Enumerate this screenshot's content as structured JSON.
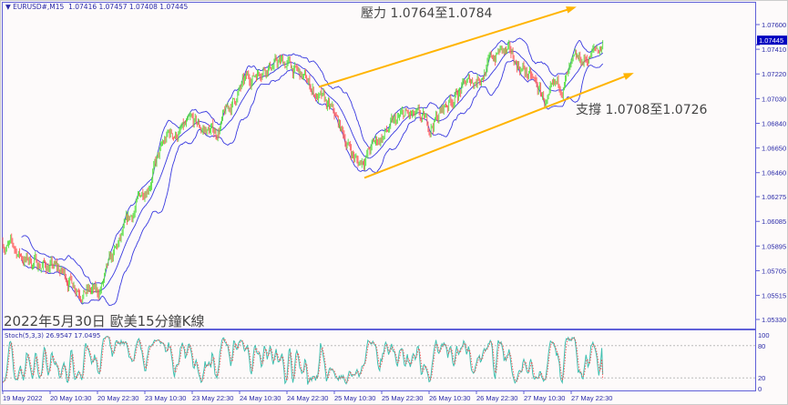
{
  "header": {
    "symbol": "EURUSD#,M15",
    "ohlc": "1.07416 1.07457 1.07408 1.07445"
  },
  "annotations": {
    "resistance": "壓力 1.0764至1.0784",
    "support": "支撐 1.0708至1.0726",
    "title": "2022年5月30日 歐美15分鐘K線"
  },
  "colors": {
    "bull": "#55e040",
    "bear": "#ff5a5a",
    "bands": "#3a3ae0",
    "trendline": "#ffb400",
    "axis": "#6060d8",
    "stoch_main": "#40c0b0",
    "stoch_signal": "#ff4040",
    "price_tag": "#0000c0"
  },
  "chart_data": [
    {
      "type": "candlestick",
      "timeframe": "M15",
      "y_ticks": [
        "1.07600",
        "1.07410",
        "1.07220",
        "1.07030",
        "1.06840",
        "1.06650",
        "1.06460",
        "1.06275",
        "1.06085",
        "1.05895",
        "1.05705",
        "1.05515",
        "1.05330"
      ],
      "ylim": [
        1.0533,
        1.076
      ],
      "current_price": "1.07445",
      "x_ticks": [
        "19 May 2022",
        "20 May 10:30",
        "20 May 22:30",
        "23 May 10:30",
        "23 May 22:30",
        "24 May 10:30",
        "24 May 22:30",
        "25 May 10:30",
        "25 May 22:30",
        "26 May 10:30",
        "26 May 22:30",
        "27 May 10:30",
        "27 May 22:30"
      ],
      "approx_price_path": [
        {
          "t": "19 May 22:30",
          "p": 1.0593
        },
        {
          "t": "20 May 04:30",
          "p": 1.0579
        },
        {
          "t": "20 May 10:30",
          "p": 1.0574
        },
        {
          "t": "20 May 16:30",
          "p": 1.0562
        },
        {
          "t": "20 May 22:30",
          "p": 1.0551
        },
        {
          "t": "23 May 04:30",
          "p": 1.0593
        },
        {
          "t": "23 May 10:30",
          "p": 1.0635
        },
        {
          "t": "23 May 16:30",
          "p": 1.0674
        },
        {
          "t": "23 May 22:30",
          "p": 1.0681
        },
        {
          "t": "24 May 04:30",
          "p": 1.0677
        },
        {
          "t": "24 May 10:30",
          "p": 1.0709
        },
        {
          "t": "24 May 16:30",
          "p": 1.073
        },
        {
          "t": "24 May 22:30",
          "p": 1.073
        },
        {
          "t": "25 May 04:30",
          "p": 1.0712
        },
        {
          "t": "25 May 10:30",
          "p": 1.0688
        },
        {
          "t": "25 May 16:30",
          "p": 1.0653
        },
        {
          "t": "25 May 22:30",
          "p": 1.0674
        },
        {
          "t": "26 May 04:30",
          "p": 1.0689
        },
        {
          "t": "26 May 10:30",
          "p": 1.0681
        },
        {
          "t": "26 May 16:30",
          "p": 1.0705
        },
        {
          "t": "26 May 22:30",
          "p": 1.0719
        },
        {
          "t": "27 May 04:30",
          "p": 1.074
        },
        {
          "t": "27 May 10:30",
          "p": 1.0726
        },
        {
          "t": "27 May 16:30",
          "p": 1.0698
        },
        {
          "t": "27 May 22:30",
          "p": 1.0723
        },
        {
          "t": "27 May 23:45",
          "p": 1.07445
        }
      ],
      "indicators": [
        "Bollinger Bands",
        "Moving Average"
      ],
      "trendlines": [
        {
          "label": "resistance",
          "from_price": 1.0712,
          "to_price": 1.0773
        },
        {
          "label": "support",
          "from_price": 1.0642,
          "to_price": 1.0722
        }
      ]
    },
    {
      "type": "line",
      "title": "Stoch(5,3,3) 26.9547 17.0495",
      "y_ticks": [
        "100",
        "80",
        "20",
        "0"
      ],
      "ylim": [
        0,
        100
      ],
      "levels": [
        20,
        80
      ],
      "last_main": 26.9547,
      "last_signal": 17.0495
    }
  ]
}
